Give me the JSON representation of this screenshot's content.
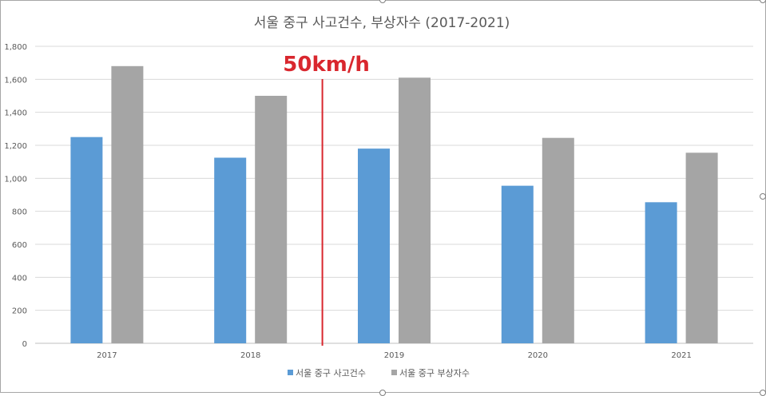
{
  "chart_data": {
    "type": "bar",
    "title": "서울 중구 사고건수, 부상자수 (2017-2021)",
    "categories": [
      "2017",
      "2018",
      "2019",
      "2020",
      "2021"
    ],
    "series": [
      {
        "name": "서울 중구 사고건수",
        "color": "#5b9bd5",
        "values": [
          1250,
          1125,
          1180,
          955,
          855
        ]
      },
      {
        "name": "서울 중구 부상자수",
        "color": "#a5a5a5",
        "values": [
          1680,
          1500,
          1610,
          1245,
          1155
        ]
      }
    ],
    "ylim": [
      0,
      1800
    ],
    "yticks": [
      "0",
      "200",
      "400",
      "600",
      "800",
      "1,000",
      "1,200",
      "1,400",
      "1,600",
      "1,800"
    ],
    "grid": true,
    "legend_position": "bottom",
    "annotation": {
      "text": "50km/h",
      "color": "#d9272e",
      "between_categories": [
        "2018",
        "2019"
      ]
    }
  }
}
